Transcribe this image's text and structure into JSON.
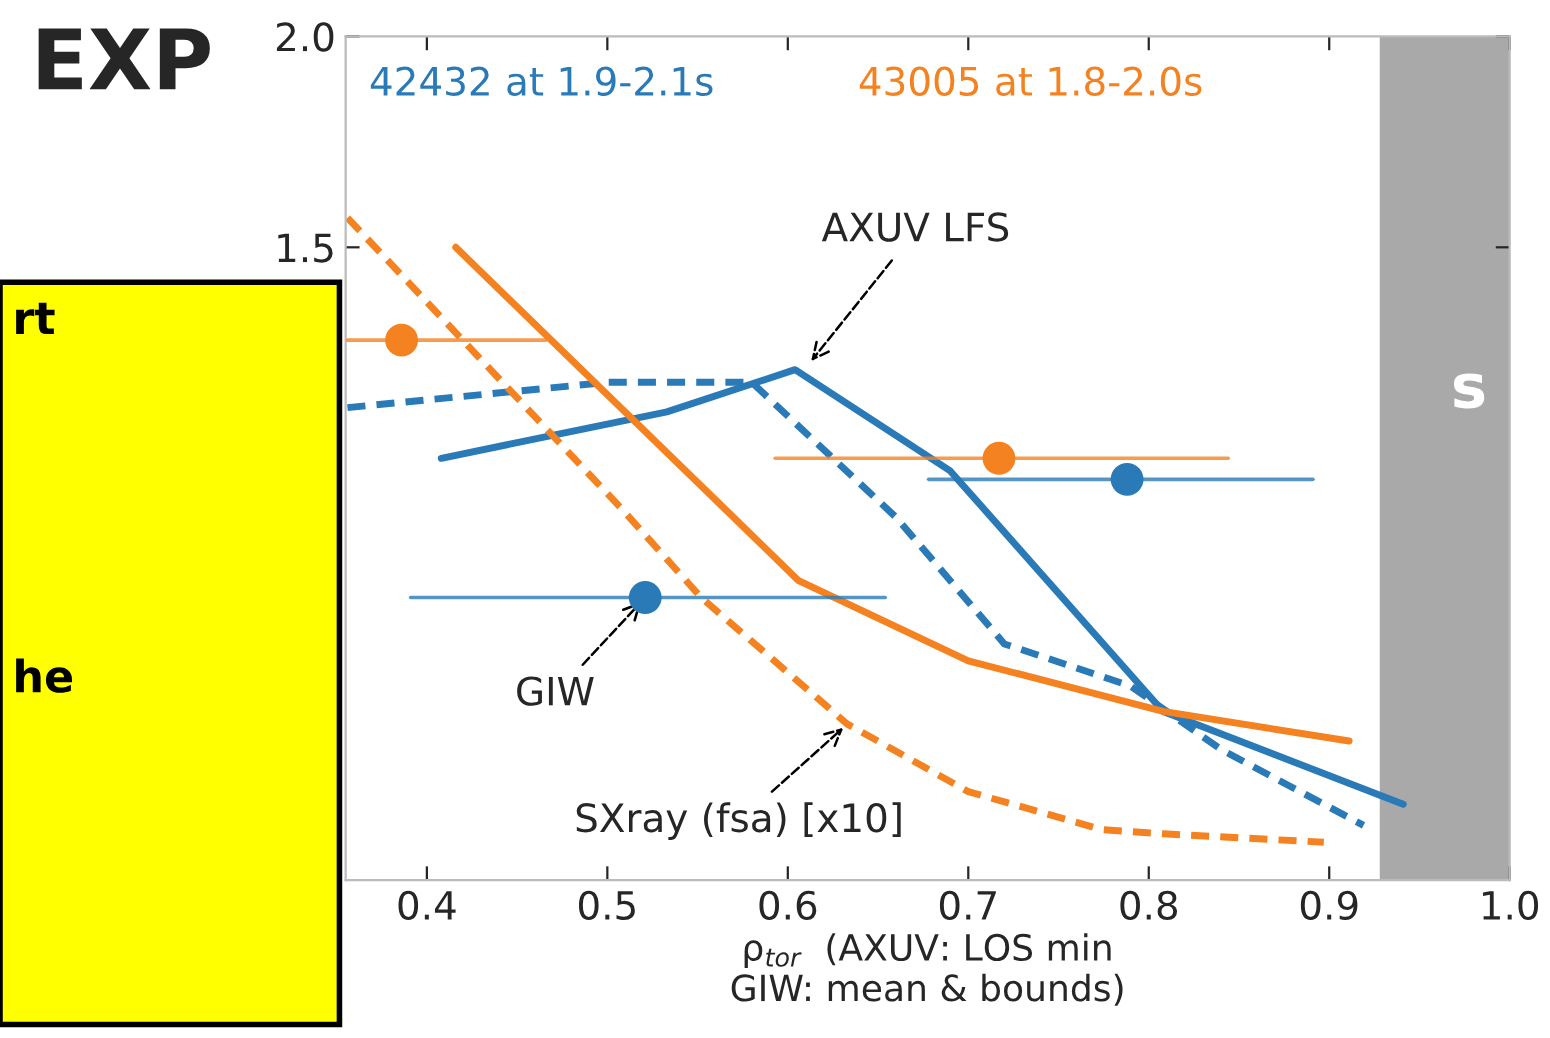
{
  "chart_data": {
    "type": "line",
    "title": "EXP",
    "xlabel": "ρ$_{tor}$  (AXUV: LOS min\nGIW: mean & bounds)",
    "xlim": [
      0.355,
      1.0
    ],
    "ylim": [
      0,
      2.0
    ],
    "xticks": [
      0.4,
      0.5,
      0.6,
      0.7,
      0.8,
      0.9,
      {
        "value": 1.0,
        "label": "1.0"
      }
    ],
    "yticks": [
      {
        "value": 1.5,
        "label": "1.5"
      },
      {
        "value": 2.0,
        "label": "2.0"
      }
    ],
    "grid": false,
    "legend": false,
    "series": [
      {
        "name": "42432 at 1.9-2.1s",
        "color": "#2a7ab8",
        "line_style": "solid",
        "x": [
          0.408,
          0.533,
          0.604,
          0.69,
          0.808,
          0.941
        ],
        "values": [
          1.0,
          1.11,
          1.21,
          0.97,
          0.4,
          0.18
        ]
      },
      {
        "color": "#2a7ab8",
        "line_style": "dashed",
        "x": [
          0.356,
          0.5,
          0.58,
          0.66,
          0.72,
          0.79,
          0.84,
          0.919
        ],
        "values": [
          1.12,
          1.18,
          1.18,
          0.86,
          0.56,
          0.46,
          0.31,
          0.13
        ]
      },
      {
        "name": "43005 at 1.8-2.0s",
        "color": "#f58220",
        "line_style": "solid",
        "x": [
          0.416,
          0.606,
          0.7,
          0.808,
          0.911
        ],
        "values": [
          1.5,
          0.71,
          0.52,
          0.4,
          0.33
        ]
      },
      {
        "color": "#f58220",
        "line_style": "dashed",
        "x": [
          0.356,
          0.508,
          0.552,
          0.633,
          0.7,
          0.774,
          0.808,
          0.897
        ],
        "values": [
          1.57,
          0.88,
          0.67,
          0.37,
          0.21,
          0.12,
          0.11,
          0.09
        ]
      },
      {
        "type": "scatter",
        "marker": "circle",
        "color": "#f58220",
        "x": [
          0.386,
          0.717
        ],
        "values": [
          1.28,
          1.0
        ],
        "xerrors": [
          [
            0.356,
            0.466
          ],
          [
            0.593,
            0.844
          ]
        ]
      },
      {
        "type": "scatter",
        "marker": "circle",
        "color": "#2a7ab8",
        "x": [
          0.521,
          0.788
        ],
        "values": [
          0.67,
          0.95
        ],
        "xerrors": [
          [
            0.391,
            0.654
          ],
          [
            0.678,
            0.891
          ]
        ]
      }
    ],
    "bands": [
      {
        "axis": "x",
        "from": 0.928,
        "to": 1.0,
        "color": "#a9a9a9"
      }
    ],
    "annotations": [
      {
        "text": "AXUV LFS",
        "x": 0.611,
        "y": 1.22
      },
      {
        "text": "GIW",
        "x": 0.521,
        "y": 0.67
      },
      {
        "text": "SXray (fsa) [x10]",
        "x": 0.633,
        "y": 0.37
      },
      "rt",
      "he",
      "s"
    ]
  }
}
